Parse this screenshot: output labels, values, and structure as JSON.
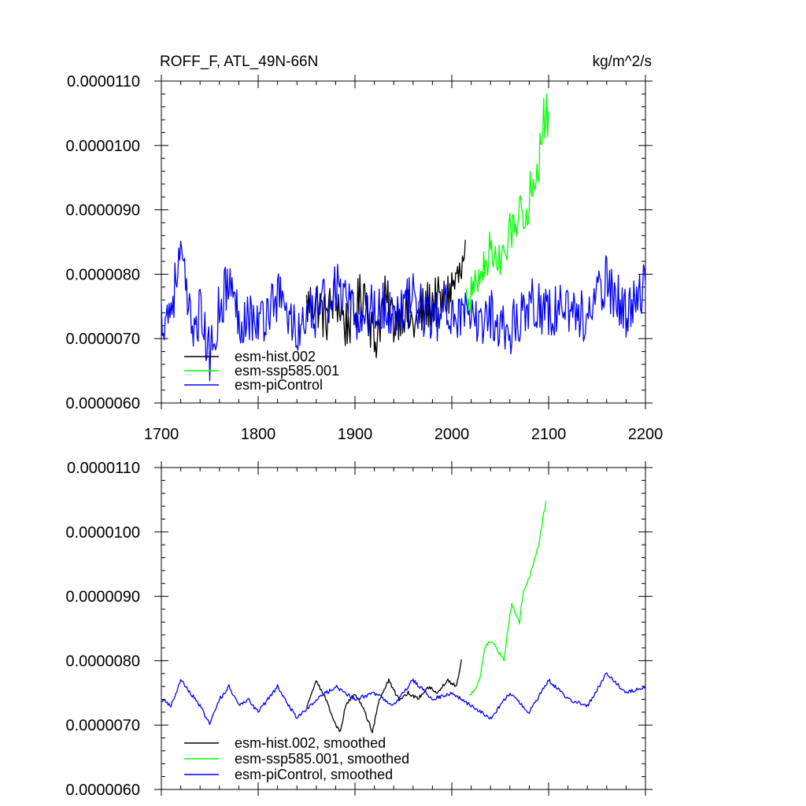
{
  "chart_data": [
    {
      "type": "line",
      "title_left": "ROFF_F, ATL_49N-66N",
      "title_right": "kg/m^2/s",
      "xlim": [
        1700,
        2200
      ],
      "ylim": [
        6e-06,
        1.1e-05
      ],
      "x_ticks": [
        1700,
        1800,
        1900,
        2000,
        2100,
        2200
      ],
      "x_tick_labels": [
        "1700",
        "1800",
        "1900",
        "2000",
        "2100",
        "2200"
      ],
      "y_ticks": [
        6e-06,
        7e-06,
        8e-06,
        9e-06,
        1e-05,
        1.1e-05
      ],
      "y_tick_labels": [
        "0.0000060",
        "0.0000070",
        "0.0000080",
        "0.0000090",
        "0.0000100",
        "0.0000110"
      ],
      "legend": [
        "esm-hist.002",
        "esm-ssp585.001",
        "esm-piControl"
      ],
      "legend_position": "bottom-left",
      "series": [
        {
          "name": "esm-hist.002",
          "color": "#000000",
          "x_range": [
            1850,
            2014
          ],
          "x": [
            1850,
            1860,
            1870,
            1880,
            1890,
            1900,
            1910,
            1920,
            1930,
            1940,
            1950,
            1960,
            1970,
            1980,
            1990,
            2000,
            2010,
            2014
          ],
          "values": [
            7.5e-06,
            7.6e-06,
            7.3e-06,
            7.7e-06,
            7.2e-06,
            7.4e-06,
            7.8e-06,
            6.9e-06,
            7.6e-06,
            7.3e-06,
            7.5e-06,
            7.2e-06,
            7.4e-06,
            7.6e-06,
            7.5e-06,
            7.8e-06,
            8e-06,
            8.2e-06
          ]
        },
        {
          "name": "esm-ssp585.001",
          "color": "#00ff00",
          "x_range": [
            2015,
            2100
          ],
          "x": [
            2015,
            2020,
            2025,
            2030,
            2035,
            2040,
            2045,
            2050,
            2055,
            2060,
            2065,
            2070,
            2075,
            2080,
            2085,
            2090,
            2095,
            2100
          ],
          "values": [
            7.6e-06,
            7.7e-06,
            7.8e-06,
            8e-06,
            8.2e-06,
            8.4e-06,
            8.3e-06,
            8.1e-06,
            8.3e-06,
            8.6e-06,
            8.8e-06,
            9.1e-06,
            8.8e-06,
            9.2e-06,
            9.5e-06,
            9.8e-06,
            1.04e-05,
            1.05e-05
          ]
        },
        {
          "name": "esm-piControl",
          "color": "#0000ff",
          "x_range": [
            1700,
            2200
          ],
          "x": [
            1700,
            1710,
            1720,
            1730,
            1740,
            1750,
            1760,
            1770,
            1780,
            1790,
            1800,
            1820,
            1840,
            1860,
            1880,
            1900,
            1920,
            1940,
            1960,
            1980,
            2000,
            2020,
            2040,
            2060,
            2080,
            2100,
            2120,
            2140,
            2160,
            2180,
            2200
          ],
          "values": [
            7.3e-06,
            7.5e-06,
            8.3e-06,
            7.2e-06,
            7.4e-06,
            6.7e-06,
            7.5e-06,
            7.9e-06,
            7.3e-06,
            7.4e-06,
            7.2e-06,
            7.7e-06,
            7.1e-06,
            7.4e-06,
            7.8e-06,
            7.3e-06,
            7.5e-06,
            7.4e-06,
            7.6e-06,
            7.3e-06,
            7.5e-06,
            7.2e-06,
            7.4e-06,
            7.1e-06,
            7.6e-06,
            7.4e-06,
            7.5e-06,
            7.3e-06,
            7.9e-06,
            7.4e-06,
            7.8e-06
          ]
        }
      ]
    },
    {
      "type": "line",
      "xlim": [
        1700,
        2200
      ],
      "ylim": [
        6e-06,
        1.1e-05
      ],
      "y_ticks": [
        6e-06,
        7e-06,
        8e-06,
        9e-06,
        1e-05,
        1.1e-05
      ],
      "y_tick_labels": [
        "0.0000060",
        "0.0000070",
        "0.0000080",
        "0.0000090",
        "0.0000100",
        "0.0000110"
      ],
      "legend": [
        "esm-hist.002, smoothed",
        "esm-ssp585.001, smoothed",
        "esm-piControl, smoothed"
      ],
      "legend_position": "bottom-left",
      "series": [
        {
          "name": "esm-hist.002, smoothed",
          "color": "#000000",
          "x": [
            1850,
            1860,
            1870,
            1880,
            1885,
            1890,
            1900,
            1910,
            1918,
            1925,
            1935,
            1945,
            1955,
            1965,
            1975,
            1985,
            1995,
            2005,
            2010
          ],
          "values": [
            7.3e-06,
            7.7e-06,
            7.4e-06,
            7e-06,
            6.9e-06,
            7.3e-06,
            7.5e-06,
            7.2e-06,
            6.9e-06,
            7.4e-06,
            7.7e-06,
            7.4e-06,
            7.5e-06,
            7.4e-06,
            7.6e-06,
            7.5e-06,
            7.7e-06,
            7.6e-06,
            8e-06
          ]
        },
        {
          "name": "esm-ssp585.001, smoothed",
          "color": "#00ff00",
          "x": [
            2018,
            2022,
            2026,
            2030,
            2034,
            2038,
            2042,
            2046,
            2050,
            2054,
            2058,
            2062,
            2066,
            2070,
            2074,
            2078,
            2082,
            2086,
            2090,
            2094,
            2098
          ],
          "values": [
            7.5e-06,
            7.5e-06,
            7.6e-06,
            7.8e-06,
            8.2e-06,
            8.3e-06,
            8.3e-06,
            8.2e-06,
            8.1e-06,
            8e-06,
            8.5e-06,
            8.9e-06,
            8.7e-06,
            8.6e-06,
            9.1e-06,
            9.2e-06,
            9.4e-06,
            9.6e-06,
            9.8e-06,
            1.02e-05,
            1.05e-05
          ]
        },
        {
          "name": "esm-piControl, smoothed",
          "color": "#0000ff",
          "x": [
            1700,
            1710,
            1720,
            1730,
            1740,
            1750,
            1760,
            1770,
            1780,
            1790,
            1800,
            1820,
            1840,
            1860,
            1880,
            1900,
            1920,
            1940,
            1960,
            1980,
            2000,
            2020,
            2040,
            2060,
            2080,
            2100,
            2120,
            2140,
            2160,
            2180,
            2200
          ],
          "values": [
            7.4e-06,
            7.3e-06,
            7.7e-06,
            7.5e-06,
            7.3e-06,
            7e-06,
            7.4e-06,
            7.6e-06,
            7.3e-06,
            7.4e-06,
            7.2e-06,
            7.6e-06,
            7.1e-06,
            7.4e-06,
            7.6e-06,
            7.4e-06,
            7.5e-06,
            7.3e-06,
            7.7e-06,
            7.4e-06,
            7.5e-06,
            7.3e-06,
            7.1e-06,
            7.5e-06,
            7.2e-06,
            7.7e-06,
            7.4e-06,
            7.3e-06,
            7.8e-06,
            7.5e-06,
            7.6e-06
          ]
        }
      ]
    }
  ]
}
